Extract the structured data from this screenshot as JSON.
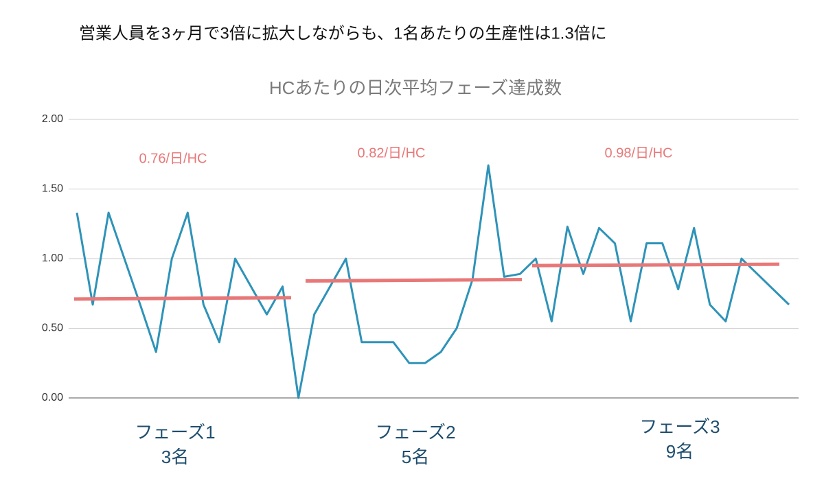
{
  "chart_data": {
    "type": "line",
    "headline": "営業人員を3ヶ月で3倍に拡大しながらも、1名あたりの生産性は1.3倍に",
    "title": "HCあたりの日次平均フェーズ達成数",
    "series": [
      {
        "color": "#2e93b8",
        "values": [
          1.33,
          0.67,
          1.33,
          1.0,
          0.67,
          0.33,
          1.0,
          1.33,
          0.67,
          0.4,
          1.0,
          0.8,
          0.6,
          0.8,
          0.0,
          0.6,
          0.8,
          1.0,
          0.4,
          0.4,
          0.4,
          0.25,
          0.25,
          0.33,
          0.5,
          0.85,
          1.67,
          0.87,
          0.89,
          1.0,
          0.55,
          1.23,
          0.89,
          1.22,
          1.11,
          0.55,
          1.11,
          1.11,
          0.78,
          1.22,
          0.67,
          0.55,
          1.0,
          0.89,
          0.78,
          0.67
        ]
      }
    ],
    "phases": [
      {
        "name": "フェーズ1",
        "headcount": "3名",
        "rate_label": "0.76/日/HC",
        "trend": [
          0.71,
          0.72
        ]
      },
      {
        "name": "フェーズ2",
        "headcount": "5名",
        "rate_label": "0.82/日/HC",
        "trend": [
          0.84,
          0.85
        ]
      },
      {
        "name": "フェーズ3",
        "headcount": "9名",
        "rate_label": "0.98/日/HC",
        "trend": [
          0.95,
          0.96
        ]
      }
    ],
    "trend_color": "#e87878",
    "ylim": [
      0,
      2
    ],
    "yticks": [
      {
        "value": 0,
        "label": "0.00"
      },
      {
        "value": 0.5,
        "label": "0.50"
      },
      {
        "value": 1,
        "label": "1.00"
      },
      {
        "value": 1.5,
        "label": "1.50"
      },
      {
        "value": 2,
        "label": "2.00"
      }
    ],
    "grid": true
  }
}
